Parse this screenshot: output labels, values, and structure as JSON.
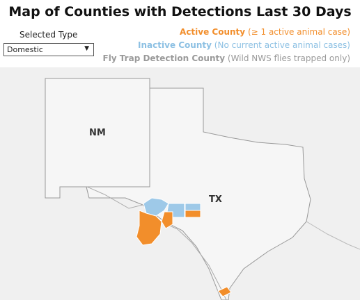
{
  "header": {
    "title": "Map of Counties with Detections Last 30 Days"
  },
  "filter": {
    "label": "Selected Type",
    "value": "Domestic"
  },
  "legend": [
    {
      "name": "Active County",
      "description": "(≥ 1 active animal case)"
    },
    {
      "name": "Inactive County",
      "description": "(No current active animal cases)"
    },
    {
      "name": "Fly Trap Detection County",
      "description": "(Wild NWS flies trapped only)"
    }
  ],
  "map": {
    "labels": [
      "NM",
      "TX"
    ]
  }
}
